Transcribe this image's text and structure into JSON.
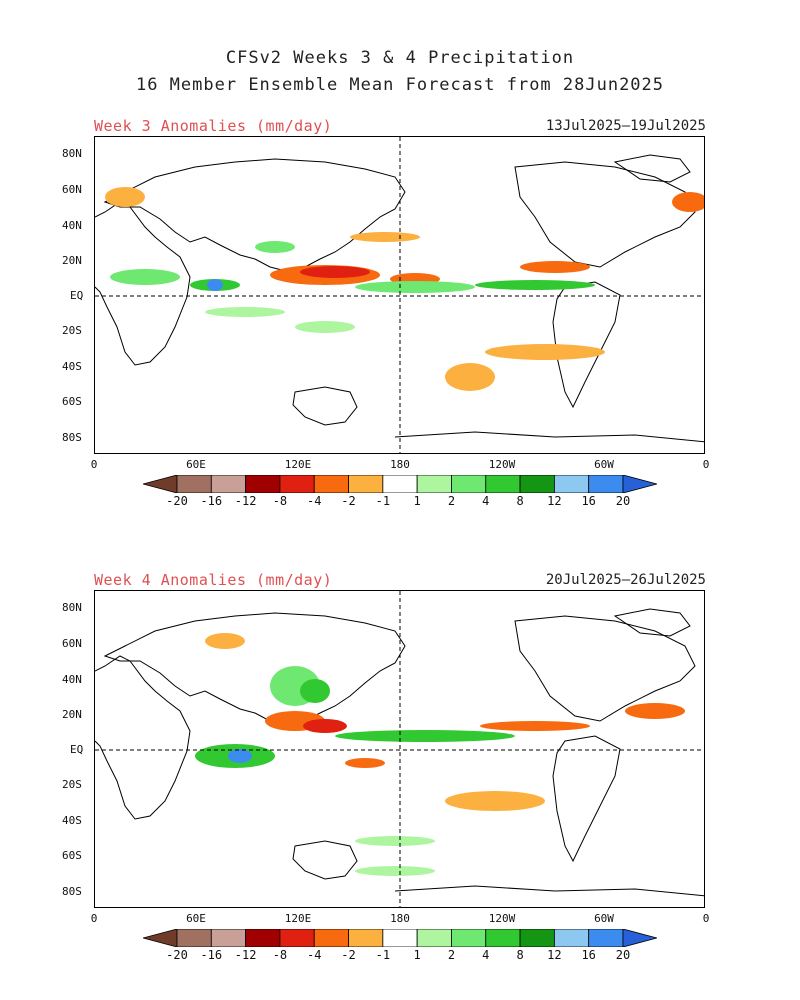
{
  "title": {
    "line1": "CFSv2 Weeks 3 & 4 Precipitation",
    "line2": "16 Member Ensemble Mean Forecast from 28Jun2025"
  },
  "panels": [
    {
      "label": "Week 3 Anomalies (mm/day)",
      "date_range": "13Jul2025—19Jul2025"
    },
    {
      "label": "Week 4 Anomalies (mm/day)",
      "date_range": "20Jul2025—26Jul2025"
    }
  ],
  "axes": {
    "lat_labels": [
      "80N",
      "60N",
      "40N",
      "20N",
      "EQ",
      "20S",
      "40S",
      "60S",
      "80S"
    ],
    "lon_labels": [
      "0",
      "60E",
      "120E",
      "180",
      "120W",
      "60W",
      "0"
    ]
  },
  "colorbar": {
    "labels": [
      "-20",
      "-16",
      "-12",
      "-8",
      "-4",
      "-2",
      "-1",
      "1",
      "2",
      "4",
      "8",
      "12",
      "16",
      "20"
    ],
    "colors": [
      "#6e3c28",
      "#a07060",
      "#c8a098",
      "#a00000",
      "#e02010",
      "#f86a10",
      "#fcb040",
      "#ffffff",
      "#aef5a0",
      "#6ee870",
      "#32c832",
      "#149614",
      "#8cc8f0",
      "#3c8cf0",
      "#2860d8"
    ]
  }
}
